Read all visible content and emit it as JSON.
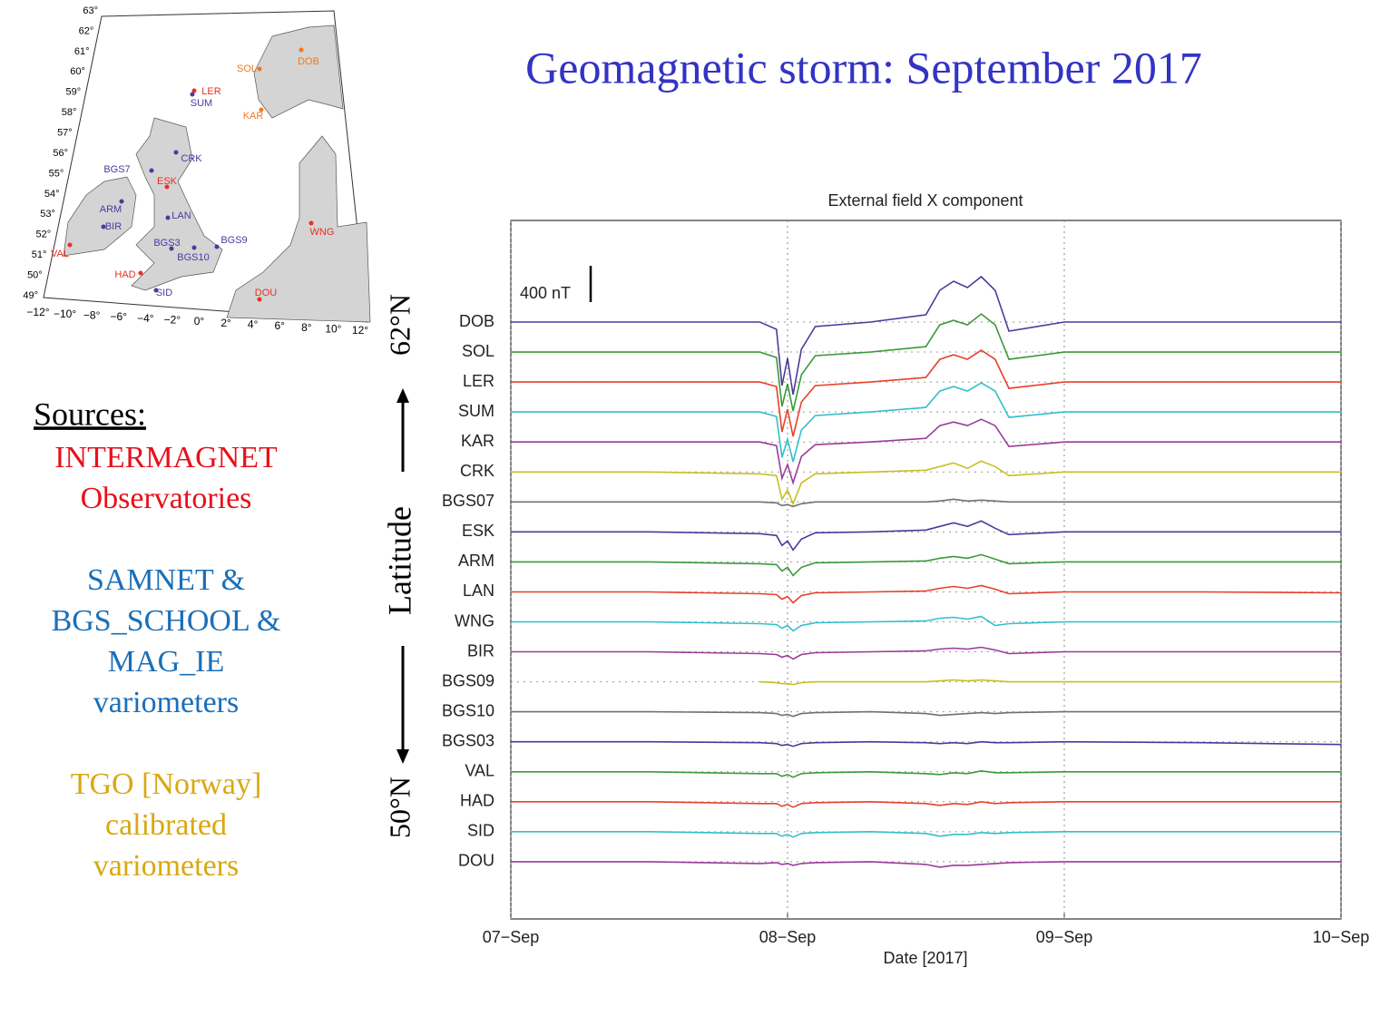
{
  "title": "Geomagnetic storm: September 2017",
  "sources": {
    "heading": "Sources:",
    "groups": [
      {
        "lines": [
          "INTERMAGNET",
          "Observatories"
        ],
        "color": "#e8101a"
      },
      {
        "lines": [
          "SAMNET &",
          "BGS_SCHOOL &",
          "MAG_IE",
          "variometers"
        ],
        "color": "#1a6fb8"
      },
      {
        "lines": [
          "TGO [Norway]",
          "calibrated",
          "variometers"
        ],
        "color": "#d9a810"
      }
    ]
  },
  "latitude_axis": {
    "label": "Latitude",
    "top": "62°N",
    "bottom": "50°N"
  },
  "map": {
    "lat_labels": [
      "63°",
      "62°",
      "61°",
      "60°",
      "59°",
      "58°",
      "57°",
      "56°",
      "55°",
      "54°",
      "53°",
      "52°",
      "51°",
      "50°",
      "49°"
    ],
    "lon_labels": [
      "−12°",
      "−10°",
      "−8°",
      "−6°",
      "−4°",
      "−2°",
      "0°",
      "2°",
      "4°",
      "6°",
      "8°",
      "10°",
      "12°"
    ],
    "stations": [
      {
        "name": "DOB",
        "color": "#f07820"
      },
      {
        "name": "SOL",
        "color": "#f07820"
      },
      {
        "name": "LER",
        "color": "#e83020"
      },
      {
        "name": "SUM",
        "color": "#4a3aa0"
      },
      {
        "name": "KAR",
        "color": "#f07820"
      },
      {
        "name": "CRK",
        "color": "#4a3aa0"
      },
      {
        "name": "BGS7",
        "color": "#4a3aa0"
      },
      {
        "name": "ESK",
        "color": "#e83020"
      },
      {
        "name": "ARM",
        "color": "#4a3aa0"
      },
      {
        "name": "BIR",
        "color": "#4a3aa0"
      },
      {
        "name": "LAN",
        "color": "#4a3aa0"
      },
      {
        "name": "WNG",
        "color": "#e83020"
      },
      {
        "name": "VAL",
        "color": "#e83020"
      },
      {
        "name": "BGS3",
        "color": "#4a3aa0"
      },
      {
        "name": "BGS9",
        "color": "#4a3aa0"
      },
      {
        "name": "BGS10",
        "color": "#4a3aa0"
      },
      {
        "name": "HAD",
        "color": "#e83020"
      },
      {
        "name": "SID",
        "color": "#4a3aa0"
      },
      {
        "name": "DOU",
        "color": "#e83020"
      }
    ]
  },
  "chart_data": {
    "type": "line",
    "title": "External field X component",
    "xlabel": "Date [2017]",
    "scale_bar": {
      "value": 400,
      "label": "400 nT"
    },
    "xlim": [
      0,
      3
    ],
    "xticks": [
      {
        "value": 0,
        "label": "07−Sep"
      },
      {
        "value": 1,
        "label": "08−Sep"
      },
      {
        "value": 2,
        "label": "09−Sep"
      },
      {
        "value": 3,
        "label": "10−Sep"
      }
    ],
    "grid": true,
    "x": [
      0,
      0.5,
      0.9,
      0.96,
      0.98,
      1.0,
      1.02,
      1.05,
      1.1,
      1.3,
      1.5,
      1.55,
      1.6,
      1.65,
      1.7,
      1.75,
      1.8,
      2.0,
      2.5,
      3.0
    ],
    "series": [
      {
        "name": "DOB",
        "color": "#4b3a9a",
        "values": [
          0,
          0,
          0,
          -80,
          -700,
          -400,
          -800,
          -300,
          -50,
          0,
          80,
          350,
          450,
          380,
          500,
          350,
          -100,
          0,
          0,
          0
        ]
      },
      {
        "name": "SOL",
        "color": "#3a9a3a",
        "values": [
          0,
          0,
          0,
          -60,
          -600,
          -350,
          -650,
          -250,
          -40,
          0,
          60,
          300,
          350,
          300,
          420,
          300,
          -80,
          0,
          0,
          0
        ]
      },
      {
        "name": "LER",
        "color": "#e8402a",
        "values": [
          0,
          0,
          0,
          -50,
          -550,
          -300,
          -600,
          -220,
          -40,
          0,
          50,
          250,
          300,
          250,
          350,
          250,
          -70,
          0,
          0,
          0
        ]
      },
      {
        "name": "SUM",
        "color": "#30c0c8",
        "values": [
          0,
          0,
          0,
          -50,
          -500,
          -300,
          -550,
          -200,
          -40,
          0,
          50,
          230,
          280,
          230,
          320,
          230,
          -60,
          0,
          0,
          0
        ]
      },
      {
        "name": "KAR",
        "color": "#9a3a9a",
        "values": [
          0,
          0,
          0,
          -40,
          -400,
          -250,
          -450,
          -160,
          -30,
          0,
          40,
          180,
          220,
          180,
          250,
          180,
          -50,
          0,
          0,
          0
        ]
      },
      {
        "name": "CRK",
        "color": "#c8c020",
        "values": [
          0,
          0,
          -20,
          -40,
          -300,
          -200,
          -350,
          -120,
          -20,
          0,
          20,
          60,
          100,
          40,
          120,
          60,
          -40,
          0,
          0,
          0
        ]
      },
      {
        "name": "BGS07",
        "color": "#707070",
        "values": [
          0,
          0,
          0,
          -10,
          -40,
          -30,
          -50,
          -20,
          0,
          0,
          0,
          10,
          30,
          10,
          20,
          10,
          0,
          0,
          0,
          0
        ]
      },
      {
        "name": "ESK",
        "color": "#4b3a9a",
        "values": [
          0,
          0,
          -20,
          -40,
          -150,
          -100,
          -200,
          -80,
          -10,
          0,
          20,
          60,
          100,
          60,
          120,
          40,
          -30,
          0,
          0,
          0
        ]
      },
      {
        "name": "ARM",
        "color": "#3a9a3a",
        "values": [
          0,
          0,
          -20,
          -30,
          -100,
          -60,
          -150,
          -60,
          -10,
          0,
          10,
          40,
          60,
          40,
          80,
          30,
          -20,
          0,
          0,
          0
        ]
      },
      {
        "name": "LAN",
        "color": "#e8402a",
        "values": [
          0,
          0,
          -20,
          -30,
          -80,
          -50,
          -120,
          -40,
          -10,
          0,
          10,
          40,
          60,
          40,
          70,
          30,
          -20,
          0,
          0,
          -10
        ]
      },
      {
        "name": "WNG",
        "color": "#30c0c8",
        "values": [
          0,
          0,
          -20,
          -30,
          -70,
          -40,
          -100,
          -40,
          -10,
          0,
          10,
          40,
          50,
          30,
          60,
          -40,
          -20,
          0,
          0,
          0
        ]
      },
      {
        "name": "BIR",
        "color": "#9a3a9a",
        "values": [
          0,
          0,
          -20,
          -30,
          -60,
          -40,
          -80,
          -30,
          -10,
          0,
          10,
          30,
          40,
          30,
          50,
          20,
          -20,
          0,
          0,
          0
        ]
      },
      {
        "name": "BGS09",
        "color": "#c8c020",
        "values": [
          null,
          null,
          0,
          -10,
          -20,
          -20,
          -30,
          -10,
          0,
          0,
          0,
          10,
          20,
          10,
          20,
          10,
          0,
          0,
          0,
          0
        ]
      },
      {
        "name": "BGS10",
        "color": "#707070",
        "values": [
          0,
          0,
          -10,
          -20,
          -40,
          -30,
          -50,
          -20,
          -10,
          0,
          -20,
          -40,
          -30,
          -20,
          -10,
          -20,
          -10,
          0,
          0,
          0
        ]
      },
      {
        "name": "BGS03",
        "color": "#4b3a9a",
        "values": [
          0,
          0,
          -10,
          -20,
          -40,
          -30,
          -50,
          -20,
          -10,
          0,
          -10,
          -20,
          -10,
          -20,
          0,
          -10,
          -10,
          0,
          -10,
          -30
        ]
      },
      {
        "name": "VAL",
        "color": "#3a9a3a",
        "values": [
          0,
          0,
          -20,
          -20,
          -50,
          -30,
          -60,
          -20,
          -10,
          0,
          -20,
          -30,
          -10,
          -20,
          10,
          -10,
          -10,
          0,
          0,
          0
        ]
      },
      {
        "name": "HAD",
        "color": "#e8402a",
        "values": [
          0,
          0,
          -20,
          -20,
          -50,
          -30,
          -60,
          -20,
          -10,
          0,
          -20,
          -40,
          -20,
          -30,
          0,
          -20,
          -10,
          0,
          0,
          0
        ]
      },
      {
        "name": "SID",
        "color": "#30c0c8",
        "values": [
          0,
          0,
          -20,
          -20,
          -50,
          -30,
          -60,
          -20,
          -10,
          0,
          -20,
          -50,
          -30,
          -30,
          -10,
          -20,
          -10,
          0,
          0,
          0
        ]
      },
      {
        "name": "DOU",
        "color": "#9a3a9a",
        "values": [
          0,
          0,
          -20,
          -10,
          -30,
          -20,
          -40,
          -20,
          -10,
          0,
          -30,
          -60,
          -40,
          -40,
          -30,
          -20,
          -10,
          0,
          0,
          0
        ]
      }
    ]
  }
}
